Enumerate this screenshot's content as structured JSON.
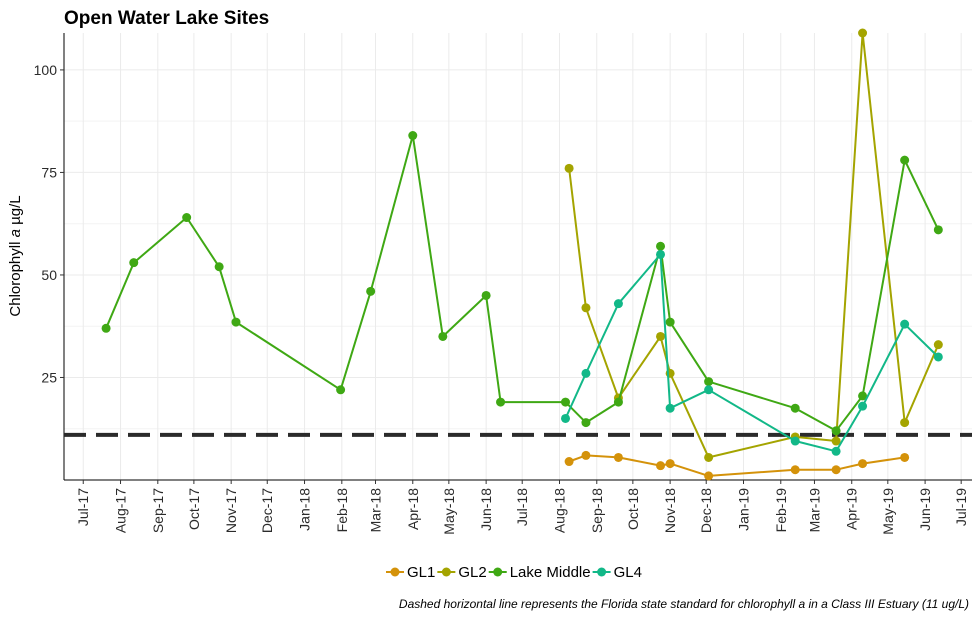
{
  "chart_data": {
    "type": "line",
    "title": "Open Water Lake Sites",
    "ylabel_prefix": "Chlorophyll ",
    "ylabel_italic": "a",
    "ylabel_suffix": " µg/L",
    "xlabel": "",
    "ylim": [
      0,
      109
    ],
    "y_ticks": [
      25,
      50,
      75,
      100
    ],
    "x_tick_labels": [
      "Jul-17",
      "Aug-17",
      "Sep-17",
      "Oct-17",
      "Nov-17",
      "Dec-17",
      "Jan-18",
      "Feb-18",
      "Mar-18",
      "Apr-18",
      "May-18",
      "Jun-18",
      "Jul-18",
      "Aug-18",
      "Sep-18",
      "Oct-18",
      "Nov-18",
      "Dec-18",
      "Jan-19",
      "Feb-19",
      "Mar-19",
      "Apr-19",
      "May-19",
      "Jun-19",
      "Jul-19"
    ],
    "x_tick_dates": [
      "2017-07-01",
      "2017-08-01",
      "2017-09-01",
      "2017-10-01",
      "2017-11-01",
      "2017-12-01",
      "2018-01-01",
      "2018-02-01",
      "2018-03-01",
      "2018-04-01",
      "2018-05-01",
      "2018-06-01",
      "2018-07-01",
      "2018-08-01",
      "2018-09-01",
      "2018-10-01",
      "2018-11-01",
      "2018-12-01",
      "2019-01-01",
      "2019-02-01",
      "2019-03-01",
      "2019-04-01",
      "2019-05-01",
      "2019-06-01",
      "2019-07-01"
    ],
    "reference_line": {
      "y": 11,
      "style": "dashed",
      "color": "#2b2b2b"
    },
    "grid": true,
    "legend_position": "bottom",
    "series": [
      {
        "name": "GL1",
        "color": "#d4920a",
        "points": [
          [
            "2018-08-09",
            4.5
          ],
          [
            "2018-08-23",
            6
          ],
          [
            "2018-09-19",
            5.5
          ],
          [
            "2018-10-24",
            3.5
          ],
          [
            "2018-11-01",
            4
          ],
          [
            "2018-12-03",
            1
          ],
          [
            "2019-02-13",
            2.5
          ],
          [
            "2019-03-19",
            2.5
          ],
          [
            "2019-04-10",
            4
          ],
          [
            "2019-05-15",
            5.5
          ]
        ]
      },
      {
        "name": "GL2",
        "color": "#a4a400",
        "points": [
          [
            "2018-08-09",
            76
          ],
          [
            "2018-08-23",
            42
          ],
          [
            "2018-09-19",
            20
          ],
          [
            "2018-10-24",
            35
          ],
          [
            "2018-11-01",
            26
          ],
          [
            "2018-12-03",
            5.5
          ],
          [
            "2019-02-13",
            10.5
          ],
          [
            "2019-03-19",
            9.5
          ],
          [
            "2019-04-10",
            109
          ],
          [
            "2019-05-15",
            14
          ],
          [
            "2019-06-12",
            33
          ]
        ]
      },
      {
        "name": "Lake Middle",
        "color": "#3fa814",
        "points": [
          [
            "2017-07-20",
            37
          ],
          [
            "2017-08-12",
            53
          ],
          [
            "2017-09-25",
            64
          ],
          [
            "2017-10-22",
            52
          ],
          [
            "2017-11-05",
            38.5
          ],
          [
            "2018-01-31",
            22
          ],
          [
            "2018-02-25",
            46
          ],
          [
            "2018-04-01",
            84
          ],
          [
            "2018-04-26",
            35
          ],
          [
            "2018-06-01",
            45
          ],
          [
            "2018-06-13",
            19
          ],
          [
            "2018-08-06",
            19
          ],
          [
            "2018-08-23",
            14
          ],
          [
            "2018-09-19",
            19
          ],
          [
            "2018-10-24",
            57
          ],
          [
            "2018-11-01",
            38.5
          ],
          [
            "2018-12-03",
            24
          ],
          [
            "2019-02-13",
            17.5
          ],
          [
            "2019-03-19",
            12
          ],
          [
            "2019-04-10",
            20.5
          ],
          [
            "2019-05-15",
            78
          ],
          [
            "2019-06-12",
            61
          ]
        ]
      },
      {
        "name": "GL4",
        "color": "#12b888",
        "points": [
          [
            "2018-08-06",
            15
          ],
          [
            "2018-08-23",
            26
          ],
          [
            "2018-09-19",
            43
          ],
          [
            "2018-10-24",
            55
          ],
          [
            "2018-11-01",
            17.5
          ],
          [
            "2018-12-03",
            22
          ],
          [
            "2019-02-13",
            9.5
          ],
          [
            "2019-03-19",
            7
          ],
          [
            "2019-04-10",
            18
          ],
          [
            "2019-05-15",
            38
          ],
          [
            "2019-06-12",
            30
          ]
        ]
      }
    ]
  },
  "caption": "Dashed horizontal line represents the Florida state standard for chlorophyll a in a Class III Estuary (11 ug/L)"
}
